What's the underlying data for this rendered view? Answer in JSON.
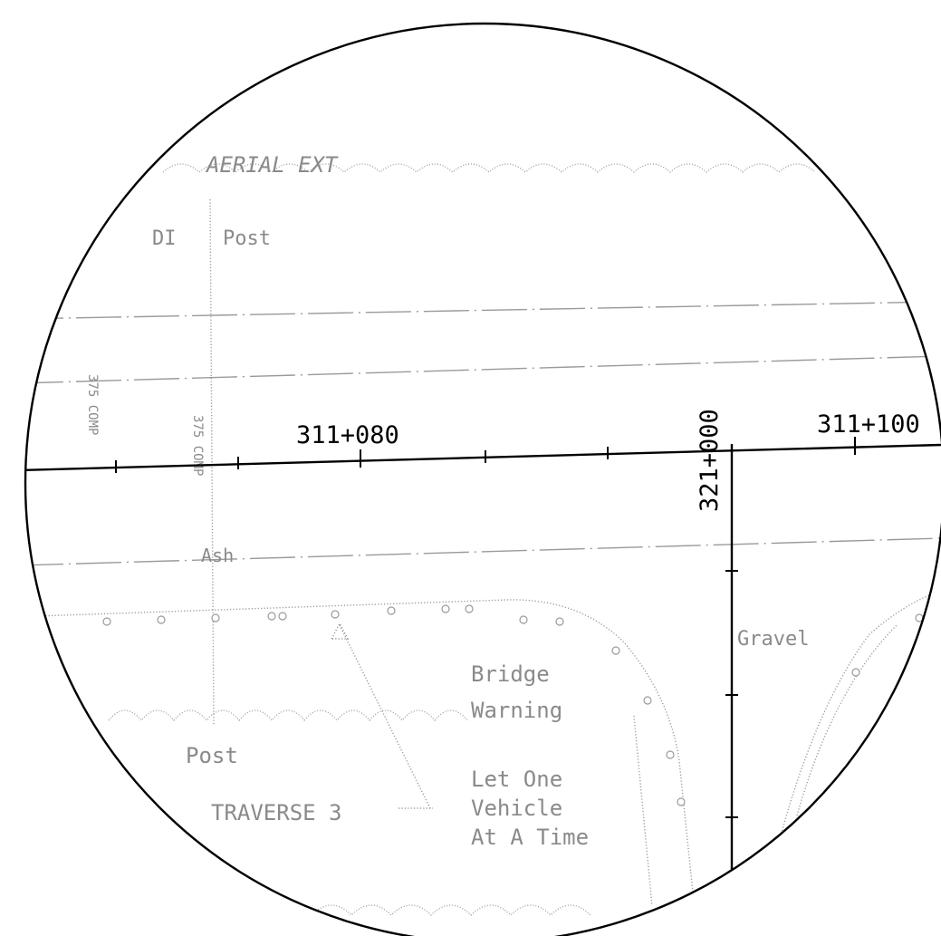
{
  "chainage": {
    "main_labels": [
      "311+080",
      "311+100"
    ],
    "cross_label": "321+000"
  },
  "annotations": {
    "aerial": "AERIAL EXT",
    "di_post": "DI",
    "post_top": "Post",
    "comp_left": "375 COMP",
    "comp_mid": "375 COMP",
    "ash": "Ash",
    "gravel": "Gravel",
    "bridge_line1": "Bridge",
    "bridge_line2": "Warning",
    "post_bottom": "Post",
    "traverse": "TRAVERSE 3",
    "let_line1": "Let One",
    "let_line2": "Vehicle",
    "let_line3": "At A Time"
  },
  "colors": {
    "linework": "#000000",
    "background_detail": "#9a9a9a"
  }
}
